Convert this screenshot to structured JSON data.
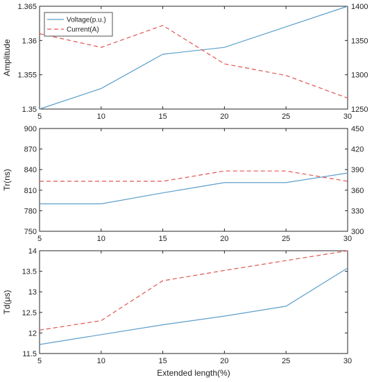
{
  "chart_data": [
    {
      "type": "line",
      "xlabel": "",
      "ylabel": "Amplitude",
      "y2label": "",
      "x": [
        5,
        10,
        15,
        20,
        25,
        30
      ],
      "xlim": [
        5,
        30
      ],
      "xticks": [
        "5",
        "10",
        "15",
        "20",
        "25",
        "30"
      ],
      "ylim": [
        1.35,
        1.365
      ],
      "yticks": [
        "1.35",
        "1.355",
        "1.36",
        "1.365"
      ],
      "y2lim": [
        1250,
        1400
      ],
      "y2ticks": [
        "1250",
        "1300",
        "1350",
        "1400"
      ],
      "grid": false,
      "legend": "top-left",
      "series": [
        {
          "name": "Voltage(p.u.)",
          "axis": "left",
          "style": "solid",
          "color": "#5b9ec9",
          "values": [
            1.35,
            1.353,
            1.358,
            1.359,
            1.362,
            1.365
          ]
        },
        {
          "name": "Current(A)",
          "axis": "right",
          "style": "dashed",
          "color": "#e0534f",
          "values": [
            1360,
            1340,
            1372,
            1316,
            1299,
            1266
          ]
        }
      ]
    },
    {
      "type": "line",
      "xlabel": "",
      "ylabel": "Tr(ns)",
      "y2label": "",
      "x": [
        5,
        10,
        15,
        20,
        25,
        30
      ],
      "xlim": [
        5,
        30
      ],
      "xticks": [
        "5",
        "10",
        "15",
        "20",
        "25",
        "30"
      ],
      "ylim": [
        750,
        900
      ],
      "yticks": [
        "750",
        "780",
        "810",
        "840",
        "870",
        "900"
      ],
      "y2lim": [
        300,
        450
      ],
      "y2ticks": [
        "300",
        "330",
        "360",
        "390",
        "420",
        "450"
      ],
      "grid": false,
      "series": [
        {
          "name": "Voltage(p.u.)",
          "axis": "left",
          "style": "solid",
          "color": "#5b9ec9",
          "values": [
            790,
            790,
            806,
            821,
            821,
            835
          ]
        },
        {
          "name": "Current(A)",
          "axis": "right",
          "style": "dashed",
          "color": "#e0534f",
          "values": [
            373,
            373,
            373,
            388,
            388,
            373
          ]
        }
      ]
    },
    {
      "type": "line",
      "xlabel": "Extended length(%)",
      "ylabel": "Td(μs)",
      "x": [
        5,
        10,
        15,
        20,
        25,
        30
      ],
      "xlim": [
        5,
        30
      ],
      "xticks": [
        "5",
        "10",
        "15",
        "20",
        "25",
        "30"
      ],
      "ylim": [
        11.5,
        14
      ],
      "yticks": [
        "11.5",
        "12",
        "12.5",
        "13",
        "13.5",
        "14"
      ],
      "grid": false,
      "series": [
        {
          "name": "Voltage(p.u.)",
          "axis": "left",
          "style": "solid",
          "color": "#5b9ec9",
          "values": [
            11.72,
            11.96,
            12.2,
            12.41,
            12.65,
            13.58
          ]
        },
        {
          "name": "Current(A)",
          "axis": "left",
          "style": "dashed",
          "color": "#e0534f",
          "values": [
            12.07,
            12.3,
            13.27,
            13.52,
            13.76,
            14.0
          ]
        }
      ]
    }
  ]
}
